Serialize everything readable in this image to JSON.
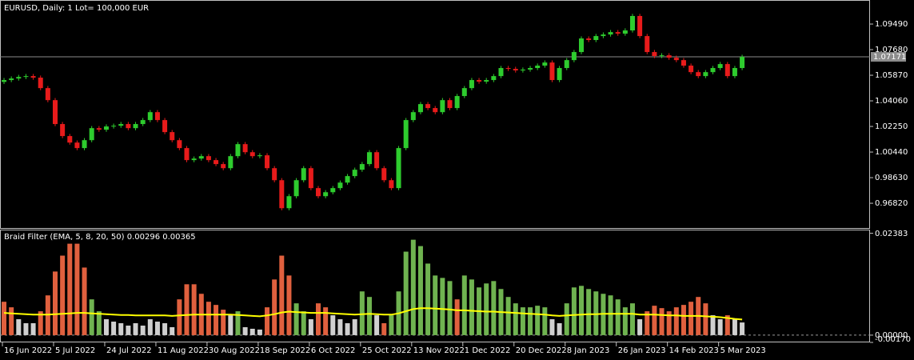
{
  "chart_data": [
    {
      "type": "candlestick",
      "title": "EURUSD, Daily:  1 Lot= 100,000 EUR",
      "up_color": "#2ecc2e",
      "down_color": "#e81b1b",
      "xlim": [
        -0.55,
        118.5
      ],
      "xticks": [
        {
          "value": 0,
          "label": "16 Jun 2022"
        },
        {
          "value": 7,
          "label": "5 Jul 2022"
        },
        {
          "value": 14,
          "label": "24 Jul 2022"
        },
        {
          "value": 21,
          "label": "11 Aug 2022"
        },
        {
          "value": 28,
          "label": "30 Aug 2022"
        },
        {
          "value": 35,
          "label": "18 Sep 2022"
        },
        {
          "value": 42,
          "label": "6 Oct 2022"
        },
        {
          "value": 49,
          "label": "25 Oct 2022"
        },
        {
          "value": 56,
          "label": "13 Nov 2022"
        },
        {
          "value": 63,
          "label": "1 Dec 2022"
        },
        {
          "value": 70,
          "label": "20 Dec 2022"
        },
        {
          "value": 77,
          "label": "8 Jan 2023"
        },
        {
          "value": 84,
          "label": "26 Jan 2023"
        },
        {
          "value": 91,
          "label": "14 Feb 2023"
        },
        {
          "value": 98,
          "label": "5 Mar 2023"
        }
      ],
      "ylim": [
        0.9507,
        1.1102
      ],
      "yticks": [
        {
          "value": 1.0949,
          "label": "1.09490"
        },
        {
          "value": 1.0768,
          "label": "1.07680"
        },
        {
          "value": 1.0587,
          "label": "1.05870"
        },
        {
          "value": 1.0406,
          "label": "1.04060"
        },
        {
          "value": 1.0225,
          "label": "1.02250"
        },
        {
          "value": 1.0044,
          "label": "1.00440"
        },
        {
          "value": 0.9863,
          "label": "0.98630"
        },
        {
          "value": 0.9682,
          "label": "0.96820"
        }
      ],
      "current_price": {
        "value": 1.07171,
        "label": "1.07171"
      },
      "open": [
        1.054,
        1.0553,
        1.0564,
        1.0575,
        1.0581,
        1.057,
        1.0496,
        1.0411,
        1.0242,
        1.0157,
        1.0111,
        1.0072,
        1.0128,
        1.0213,
        1.0202,
        1.0225,
        1.023,
        1.0242,
        1.0213,
        1.0242,
        1.027,
        1.0326,
        1.027,
        1.0185,
        1.0128,
        1.0072,
        0.9987,
        0.9998,
        1.0015,
        0.9987,
        0.9959,
        0.993,
        1.0015,
        1.01,
        1.0043,
        1.0015,
        1.0021,
        0.993,
        0.9845,
        0.9647,
        0.9732,
        0.9845,
        0.993,
        0.9789,
        0.9732,
        0.976,
        0.9789,
        0.9828,
        0.9874,
        0.9919,
        0.9959,
        1.0043,
        0.993,
        0.9845,
        0.9789,
        1.0072,
        1.027,
        1.0326,
        1.0383,
        1.0355,
        1.0326,
        1.0411,
        1.0355,
        1.044,
        1.0496,
        1.0553,
        1.0542,
        1.0553,
        1.0581,
        1.0638,
        1.0632,
        1.0621,
        1.0627,
        1.0638,
        1.0655,
        1.0677,
        1.0553,
        1.0638,
        1.0694,
        1.0751,
        1.0847,
        1.0836,
        1.0864,
        1.0875,
        1.0892,
        1.0881,
        1.0904,
        1.1006,
        1.0864,
        1.0751,
        1.0723,
        1.0728,
        1.0711,
        1.0694,
        1.0655,
        1.0609,
        1.0581,
        1.0609,
        1.0638,
        1.0666,
        1.0581,
        1.0638
      ],
      "high": [
        1.0568,
        1.0579,
        1.059,
        1.0596,
        1.0596,
        1.0585,
        1.0511,
        1.0426,
        1.0257,
        1.0172,
        1.0126,
        1.0143,
        1.0228,
        1.0228,
        1.024,
        1.0245,
        1.0257,
        1.0257,
        1.0257,
        1.0285,
        1.0341,
        1.0341,
        1.0285,
        1.02,
        1.0143,
        1.0087,
        1.0013,
        1.003,
        1.003,
        1.0002,
        0.9974,
        1.003,
        1.0115,
        1.0115,
        1.0058,
        1.0036,
        1.0036,
        0.9945,
        0.986,
        0.9747,
        0.986,
        0.9945,
        0.9945,
        0.9804,
        0.9775,
        0.9804,
        0.9843,
        0.9889,
        0.9934,
        0.9974,
        1.0058,
        1.0058,
        0.9945,
        0.986,
        1.0087,
        1.0285,
        1.0341,
        1.0398,
        1.0398,
        1.037,
        1.0426,
        1.0426,
        1.0455,
        1.0511,
        1.0568,
        1.0568,
        1.0568,
        1.0596,
        1.0653,
        1.0653,
        1.0647,
        1.0642,
        1.0653,
        1.067,
        1.0692,
        1.0692,
        1.0653,
        1.0709,
        1.0766,
        1.0862,
        1.0862,
        1.0879,
        1.089,
        1.0907,
        1.0907,
        1.0919,
        1.1021,
        1.1021,
        1.0879,
        1.0766,
        1.0743,
        1.0743,
        1.0726,
        1.0709,
        1.067,
        1.0624,
        1.0624,
        1.0653,
        1.0681,
        1.0681,
        1.0653,
        1.0732
      ],
      "low": [
        1.0525,
        1.0538,
        1.0549,
        1.056,
        1.0555,
        1.0481,
        1.0396,
        1.0227,
        1.0142,
        1.0096,
        1.0057,
        1.0057,
        1.0113,
        1.0187,
        1.0187,
        1.021,
        1.0215,
        1.0198,
        1.0198,
        1.0227,
        1.0255,
        1.0255,
        1.017,
        1.0113,
        1.0057,
        0.9972,
        0.9972,
        0.9983,
        0.9972,
        0.9944,
        0.9915,
        0.9915,
        1.0,
        1.0028,
        1.0,
        1.0,
        0.9915,
        0.983,
        0.9632,
        0.9632,
        0.9717,
        0.983,
        0.9774,
        0.9717,
        0.9717,
        0.9745,
        0.9774,
        0.9813,
        0.9859,
        0.9904,
        0.9944,
        0.9915,
        0.983,
        0.9774,
        0.9774,
        1.0057,
        1.0255,
        1.0311,
        1.034,
        1.0311,
        1.0311,
        1.034,
        1.034,
        1.0425,
        1.0481,
        1.0527,
        1.0527,
        1.0538,
        1.0566,
        1.0617,
        1.0606,
        1.0606,
        1.0612,
        1.0623,
        1.064,
        1.0538,
        1.0538,
        1.0623,
        1.0679,
        1.0736,
        1.0821,
        1.0821,
        1.0849,
        1.086,
        1.0866,
        1.0866,
        1.0889,
        1.0849,
        1.0736,
        1.0708,
        1.0708,
        1.0696,
        1.0679,
        1.064,
        1.0594,
        1.0566,
        1.0566,
        1.0594,
        1.0623,
        1.0566,
        1.0566,
        1.0623
      ],
      "close": [
        1.0553,
        1.0564,
        1.0575,
        1.0581,
        1.057,
        1.0496,
        1.0411,
        1.0242,
        1.0157,
        1.0111,
        1.0072,
        1.0128,
        1.0213,
        1.0202,
        1.0225,
        1.023,
        1.0242,
        1.0213,
        1.0242,
        1.027,
        1.0326,
        1.027,
        1.0185,
        1.0128,
        1.0072,
        0.9987,
        0.9998,
        1.0015,
        0.9987,
        0.9959,
        0.993,
        1.0015,
        1.01,
        1.0043,
        1.0015,
        1.0021,
        0.993,
        0.9845,
        0.9647,
        0.9732,
        0.9845,
        0.993,
        0.9789,
        0.9732,
        0.976,
        0.9789,
        0.9828,
        0.9874,
        0.9919,
        0.9959,
        1.0043,
        0.993,
        0.9845,
        0.9789,
        1.0072,
        1.027,
        1.0326,
        1.0383,
        1.0355,
        1.0326,
        1.0411,
        1.0355,
        1.044,
        1.0496,
        1.0553,
        1.0542,
        1.0553,
        1.0581,
        1.0638,
        1.0632,
        1.0621,
        1.0627,
        1.0638,
        1.0655,
        1.0677,
        1.0553,
        1.0638,
        1.0694,
        1.0751,
        1.0847,
        1.0836,
        1.0864,
        1.0875,
        1.0892,
        1.0881,
        1.0904,
        1.1006,
        1.0864,
        1.0751,
        1.0723,
        1.0728,
        1.0711,
        1.0694,
        1.0655,
        1.0609,
        1.0581,
        1.0609,
        1.0638,
        1.0666,
        1.0581,
        1.0638,
        1.0717
      ]
    },
    {
      "type": "bar",
      "title": "Braid Filter (EMA, 5, 8, 20, 50) 0.00296 0.00365",
      "xlim": [
        -0.55,
        118.5
      ],
      "ylim": [
        -0.0017,
        0.0245
      ],
      "yticks": [
        {
          "value": 0.02383,
          "label": "0.02383"
        },
        {
          "value": 0,
          "label": "0.00000"
        },
        {
          "value": -0.0017,
          "label": "-0.00170"
        }
      ],
      "colors": [
        "#6fb350",
        "#e0603e",
        "#d0d0d0"
      ],
      "color_index": [
        1,
        1,
        2,
        2,
        2,
        1,
        1,
        1,
        1,
        1,
        1,
        1,
        0,
        0,
        2,
        2,
        2,
        2,
        2,
        2,
        2,
        2,
        2,
        2,
        1,
        1,
        1,
        1,
        1,
        1,
        1,
        2,
        0,
        2,
        2,
        2,
        1,
        1,
        1,
        1,
        0,
        0,
        2,
        1,
        1,
        2,
        2,
        2,
        2,
        0,
        0,
        2,
        1,
        0,
        0,
        0,
        0,
        0,
        0,
        0,
        0,
        0,
        1,
        0,
        0,
        0,
        0,
        0,
        0,
        0,
        0,
        0,
        0,
        0,
        0,
        2,
        2,
        0,
        0,
        0,
        0,
        0,
        0,
        0,
        0,
        0,
        0,
        2,
        1,
        1,
        1,
        1,
        1,
        1,
        1,
        1,
        1,
        2,
        2,
        1,
        2,
        2
      ],
      "values": [
        0.00781,
        0.00651,
        0.00372,
        0.00279,
        0.00279,
        0.00558,
        0.0093,
        0.01488,
        0.0186,
        0.02139,
        0.02139,
        0.01581,
        0.00837,
        0.00558,
        0.00372,
        0.00316,
        0.00279,
        0.00223,
        0.00279,
        0.00223,
        0.00372,
        0.00316,
        0.00279,
        0.00186,
        0.00837,
        0.0119,
        0.0119,
        0.00967,
        0.00781,
        0.00707,
        0.00595,
        0.00465,
        0.00558,
        0.00186,
        0.00149,
        0.0013,
        0.00651,
        0.01302,
        0.0186,
        0.01395,
        0.00744,
        0.00558,
        0.00372,
        0.00744,
        0.00651,
        0.00465,
        0.00372,
        0.00279,
        0.00372,
        0.01023,
        0.00893,
        0.00465,
        0.00279,
        0.00465,
        0.01023,
        0.01953,
        0.02232,
        0.02083,
        0.01674,
        0.01395,
        0.01339,
        0.01265,
        0.00837,
        0.01395,
        0.01302,
        0.01116,
        0.01209,
        0.01265,
        0.01079,
        0.00893,
        0.00744,
        0.00651,
        0.00651,
        0.00688,
        0.00651,
        0.00372,
        0.00279,
        0.00744,
        0.01116,
        0.01153,
        0.01079,
        0.01023,
        0.00967,
        0.0093,
        0.00837,
        0.00651,
        0.00744,
        0.00372,
        0.00558,
        0.00688,
        0.00632,
        0.00558,
        0.00651,
        0.00707,
        0.00781,
        0.00893,
        0.00744,
        0.00465,
        0.00372,
        0.00465,
        0.00372,
        0.00296
      ],
      "line": {
        "color": "#ffff00",
        "values": [
          0.0052,
          0.0051,
          0.005,
          0.0049,
          0.0048,
          0.0048,
          0.0048,
          0.0049,
          0.005,
          0.0051,
          0.0052,
          0.0052,
          0.0051,
          0.005,
          0.0049,
          0.0048,
          0.0047,
          0.0047,
          0.0046,
          0.0046,
          0.0046,
          0.0046,
          0.0046,
          0.0045,
          0.0046,
          0.0047,
          0.0048,
          0.0048,
          0.0048,
          0.0048,
          0.0048,
          0.0048,
          0.0047,
          0.0046,
          0.0045,
          0.0044,
          0.0046,
          0.0049,
          0.0053,
          0.0055,
          0.0054,
          0.0053,
          0.0052,
          0.0052,
          0.0052,
          0.0051,
          0.005,
          0.0049,
          0.0048,
          0.0049,
          0.005,
          0.0049,
          0.0048,
          0.0048,
          0.0051,
          0.0056,
          0.0061,
          0.0063,
          0.0063,
          0.0062,
          0.0061,
          0.006,
          0.0058,
          0.0058,
          0.0057,
          0.0056,
          0.0055,
          0.0055,
          0.0054,
          0.0053,
          0.0052,
          0.0051,
          0.005,
          0.0049,
          0.0048,
          0.0046,
          0.0045,
          0.0046,
          0.0047,
          0.0048,
          0.0049,
          0.0049,
          0.005,
          0.005,
          0.005,
          0.005,
          0.005,
          0.0048,
          0.0048,
          0.0048,
          0.0047,
          0.0046,
          0.0046,
          0.0045,
          0.0045,
          0.0045,
          0.0044,
          0.0043,
          0.0042,
          0.004,
          0.0038,
          0.00365
        ]
      }
    }
  ]
}
